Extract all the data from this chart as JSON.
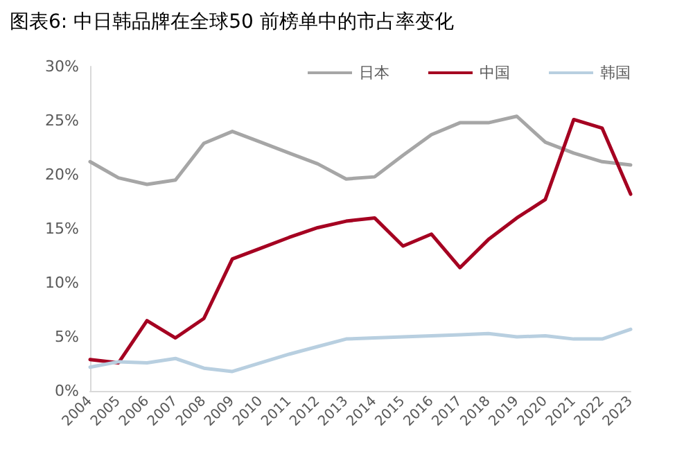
{
  "chart_data": {
    "type": "line",
    "title": "图表6: 中日韩品牌在全球50 前榜单中的市占率变化",
    "categories": [
      "2004",
      "2005",
      "2006",
      "2007",
      "2008",
      "2009",
      "2010",
      "2011",
      "2012",
      "2013",
      "2014",
      "2015",
      "2016",
      "2017",
      "2018",
      "2019",
      "2020",
      "2021",
      "2022",
      "2023"
    ],
    "series": [
      {
        "name": "日本",
        "color": "#a6a6a6",
        "values": [
          21.2,
          19.7,
          19.1,
          19.5,
          22.9,
          24.0,
          23.0,
          22.0,
          21.0,
          19.6,
          19.8,
          21.8,
          23.7,
          24.8,
          24.8,
          25.4,
          23.0,
          22.0,
          21.2,
          20.9
        ]
      },
      {
        "name": "中国",
        "color": "#a50021",
        "values": [
          2.9,
          2.6,
          6.5,
          4.9,
          6.7,
          12.2,
          13.2,
          14.2,
          15.1,
          15.7,
          16.0,
          13.4,
          14.5,
          11.4,
          14.0,
          16.0,
          17.7,
          25.1,
          24.3,
          18.2
        ]
      },
      {
        "name": "韩国",
        "color": "#b8cfe0",
        "values": [
          2.2,
          2.7,
          2.6,
          3.0,
          2.1,
          1.8,
          2.6,
          3.4,
          4.1,
          4.8,
          4.9,
          5.0,
          5.1,
          5.2,
          5.3,
          5.0,
          5.1,
          4.8,
          4.8,
          5.7
        ]
      }
    ],
    "ylim": [
      0,
      30
    ],
    "yticks": [
      {
        "value": 0,
        "label": "0%"
      },
      {
        "value": 5,
        "label": "5%"
      },
      {
        "value": 10,
        "label": "10%"
      },
      {
        "value": 15,
        "label": "15%"
      },
      {
        "value": 20,
        "label": "20%"
      },
      {
        "value": 25,
        "label": "25%"
      },
      {
        "value": 30,
        "label": "30%"
      }
    ],
    "grid": false,
    "legend": "top right",
    "marker": "none",
    "line_style": "solid"
  }
}
